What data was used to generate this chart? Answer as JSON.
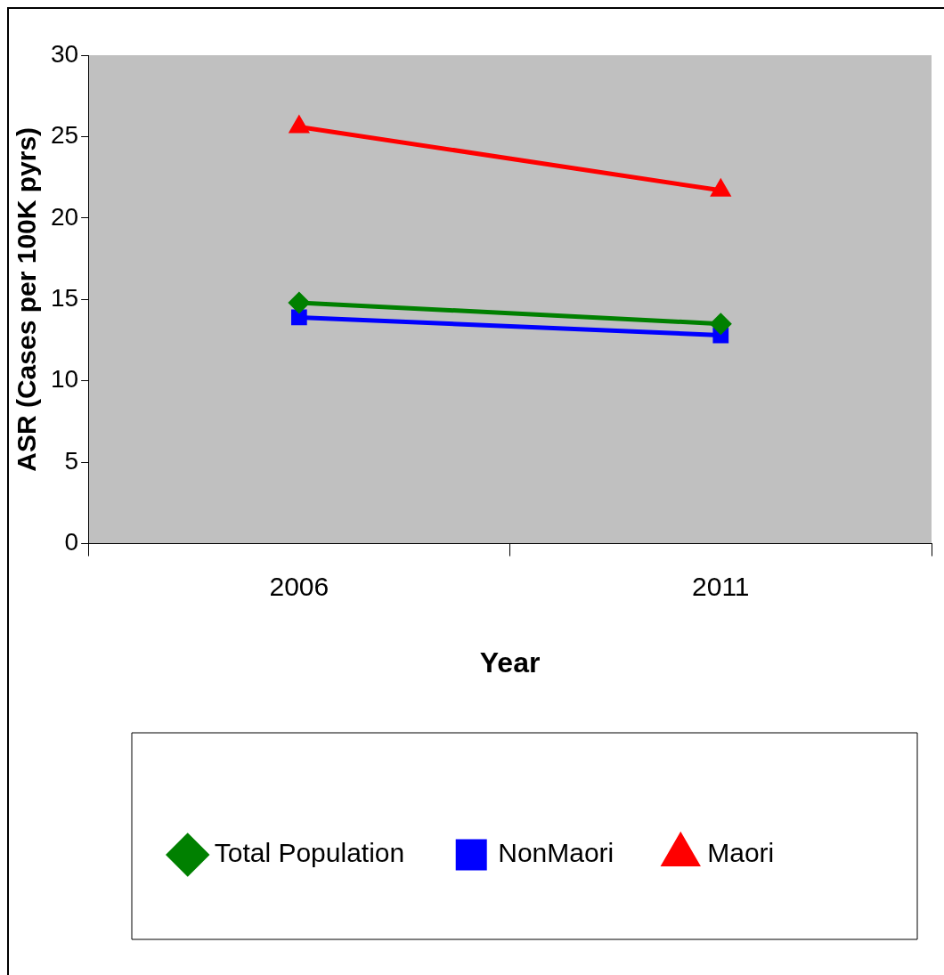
{
  "chart_data": {
    "type": "line",
    "xlabel": "Year",
    "ylabel": "ASR (Cases per 100K pyrs)",
    "categories": [
      "2006",
      "2011"
    ],
    "series": [
      {
        "name": "Total Population",
        "color": "#008000",
        "values": [
          14.8,
          13.5
        ],
        "marker": "diamond"
      },
      {
        "name": "NonMaori",
        "color": "#0000ff",
        "values": [
          13.9,
          12.8
        ],
        "marker": "square"
      },
      {
        "name": "Maori",
        "color": "#ff0000",
        "values": [
          25.6,
          21.7
        ],
        "marker": "triangle"
      }
    ],
    "ylim": [
      0,
      30
    ],
    "yticks": [
      0,
      5,
      10,
      15,
      20,
      25,
      30
    ],
    "legend": "bottom",
    "line_style": "solid"
  }
}
